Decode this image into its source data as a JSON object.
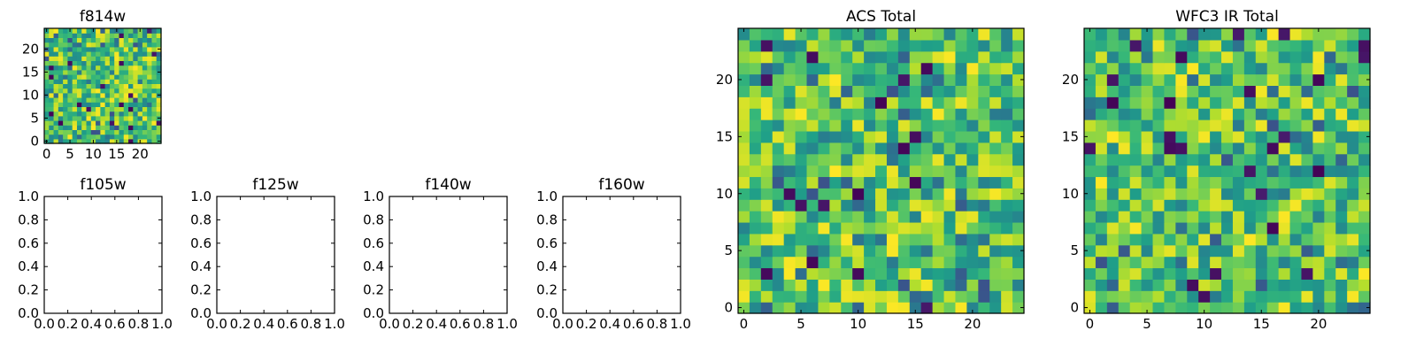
{
  "chart_data": [
    {
      "type": "heatmap",
      "title": "f814w",
      "rows": 25,
      "cols": 25,
      "xlim": [
        -0.5,
        24.5
      ],
      "ylim": [
        -0.5,
        24.5
      ],
      "xticks": [
        0,
        5,
        10,
        15,
        20
      ],
      "yticks": [
        0,
        5,
        10,
        15,
        20
      ],
      "colormap": "viridis",
      "seed": 11,
      "note": "random-noise image; cell values approximated"
    },
    {
      "type": "empty",
      "title": "f105w",
      "xlim": [
        0.0,
        1.0
      ],
      "ylim": [
        0.0,
        1.0
      ],
      "xticks": [
        "0.0",
        "0.2",
        "0.4",
        "0.6",
        "0.8",
        "1.0"
      ],
      "yticks": [
        "0.0",
        "0.2",
        "0.4",
        "0.6",
        "0.8",
        "1.0"
      ]
    },
    {
      "type": "empty",
      "title": "f125w",
      "xlim": [
        0.0,
        1.0
      ],
      "ylim": [
        0.0,
        1.0
      ],
      "xticks": [
        "0.0",
        "0.2",
        "0.4",
        "0.6",
        "0.8",
        "1.0"
      ],
      "yticks": [
        "0.0",
        "0.2",
        "0.4",
        "0.6",
        "0.8",
        "1.0"
      ]
    },
    {
      "type": "empty",
      "title": "f140w",
      "xlim": [
        0.0,
        1.0
      ],
      "ylim": [
        0.0,
        1.0
      ],
      "xticks": [
        "0.0",
        "0.2",
        "0.4",
        "0.6",
        "0.8",
        "1.0"
      ],
      "yticks": [
        "0.0",
        "0.2",
        "0.4",
        "0.6",
        "0.8",
        "1.0"
      ]
    },
    {
      "type": "empty",
      "title": "f160w",
      "xlim": [
        0.0,
        1.0
      ],
      "ylim": [
        0.0,
        1.0
      ],
      "xticks": [
        "0.0",
        "0.2",
        "0.4",
        "0.6",
        "0.8",
        "1.0"
      ],
      "yticks": [
        "0.0",
        "0.2",
        "0.4",
        "0.6",
        "0.8",
        "1.0"
      ]
    },
    {
      "type": "heatmap",
      "title": "ACS Total",
      "rows": 25,
      "cols": 25,
      "xlim": [
        -0.5,
        24.5
      ],
      "ylim": [
        -0.5,
        24.5
      ],
      "xticks": [
        0,
        5,
        10,
        15,
        20
      ],
      "yticks": [
        0,
        5,
        10,
        15,
        20
      ],
      "colormap": "viridis",
      "seed": 37,
      "note": "random-noise image; cell values approximated"
    },
    {
      "type": "heatmap",
      "title": "WFC3 IR Total",
      "rows": 25,
      "cols": 25,
      "xlim": [
        -0.5,
        24.5
      ],
      "ylim": [
        -0.5,
        24.5
      ],
      "xticks": [
        0,
        5,
        10,
        15,
        20
      ],
      "yticks": [
        0,
        5,
        10,
        15,
        20
      ],
      "colormap": "viridis",
      "seed": 73,
      "note": "random-noise image; cell values approximated"
    }
  ]
}
